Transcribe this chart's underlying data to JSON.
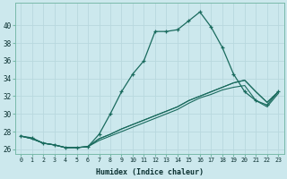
{
  "xlabel": "Humidex (Indice chaleur)",
  "background_color": "#cce8ed",
  "grid_color": "#b8d8de",
  "line_color": "#1a6b5e",
  "xlim": [
    -0.5,
    23.5
  ],
  "ylim": [
    25.5,
    42.5
  ],
  "xtick_labels": [
    "0",
    "1",
    "2",
    "3",
    "4",
    "5",
    "6",
    "7",
    "8",
    "9",
    "10",
    "11",
    "12",
    "13",
    "14",
    "15",
    "16",
    "17",
    "18",
    "19",
    "20",
    "21",
    "22",
    "23"
  ],
  "ytick_values": [
    26,
    28,
    30,
    32,
    34,
    36,
    38,
    40
  ],
  "series1": [
    27.5,
    27.3,
    26.7,
    26.5,
    26.2,
    26.2,
    26.3,
    27.7,
    30.0,
    32.5,
    34.5,
    36.0,
    39.3,
    39.3,
    39.5,
    40.5,
    41.5,
    39.8,
    37.5,
    34.5,
    32.5,
    31.5,
    31.0,
    32.5
  ],
  "series2": [
    27.5,
    27.2,
    26.7,
    26.5,
    26.2,
    26.2,
    26.3,
    27.0,
    27.5,
    28.0,
    28.5,
    29.0,
    29.5,
    30.0,
    30.5,
    31.2,
    31.8,
    32.2,
    32.7,
    33.0,
    33.2,
    31.5,
    30.8,
    32.3
  ],
  "series3": [
    27.5,
    27.2,
    26.7,
    26.5,
    26.2,
    26.2,
    26.3,
    27.2,
    27.7,
    28.3,
    28.8,
    29.3,
    29.8,
    30.3,
    30.8,
    31.5,
    32.0,
    32.5,
    33.0,
    33.5,
    33.8,
    32.5,
    31.3,
    32.5
  ],
  "series4": [
    27.5,
    27.2,
    26.7,
    26.5,
    26.2,
    26.2,
    26.3,
    27.2,
    27.7,
    28.3,
    28.8,
    29.3,
    29.8,
    30.3,
    30.8,
    31.5,
    32.0,
    32.5,
    33.0,
    33.5,
    33.8,
    32.5,
    31.3,
    32.5
  ]
}
